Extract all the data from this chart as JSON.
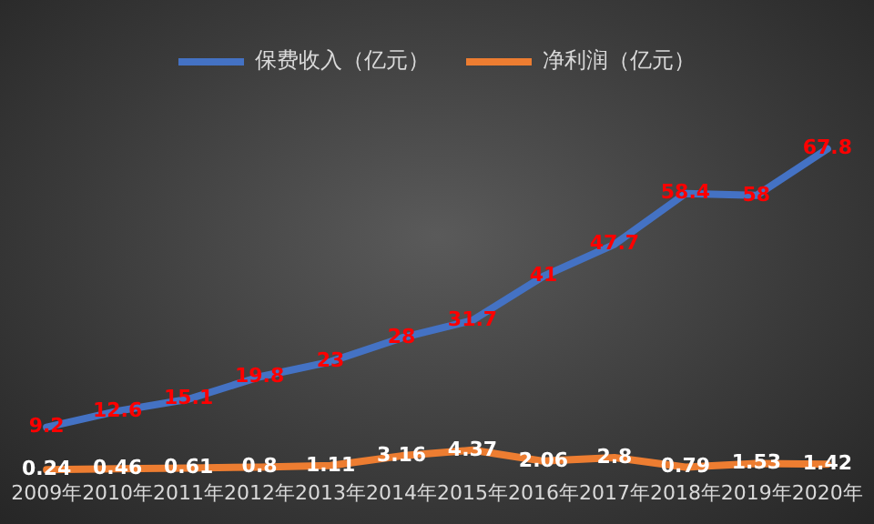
{
  "chart_data": {
    "type": "line",
    "categories": [
      "2009年",
      "2010年",
      "2011年",
      "2012年",
      "2013年",
      "2014年",
      "2015年",
      "2016年",
      "2017年",
      "2018年",
      "2019年",
      "2020年"
    ],
    "series": [
      {
        "name": "保费收入（亿元）",
        "color": "#4472c4",
        "values": [
          9.2,
          12.6,
          15.1,
          19.8,
          23,
          28,
          31.7,
          41,
          47.7,
          58.4,
          58,
          67.8
        ]
      },
      {
        "name": "净利润（亿元）",
        "color": "#ed7d31",
        "values": [
          0.24,
          0.46,
          0.61,
          0.8,
          1.11,
          3.16,
          4.37,
          2.06,
          2.8,
          0.79,
          1.53,
          1.42
        ]
      }
    ],
    "data_labels": true,
    "legend": "top",
    "tick_labels": "x",
    "grid": false,
    "marker": "none",
    "line_style": "solid"
  }
}
